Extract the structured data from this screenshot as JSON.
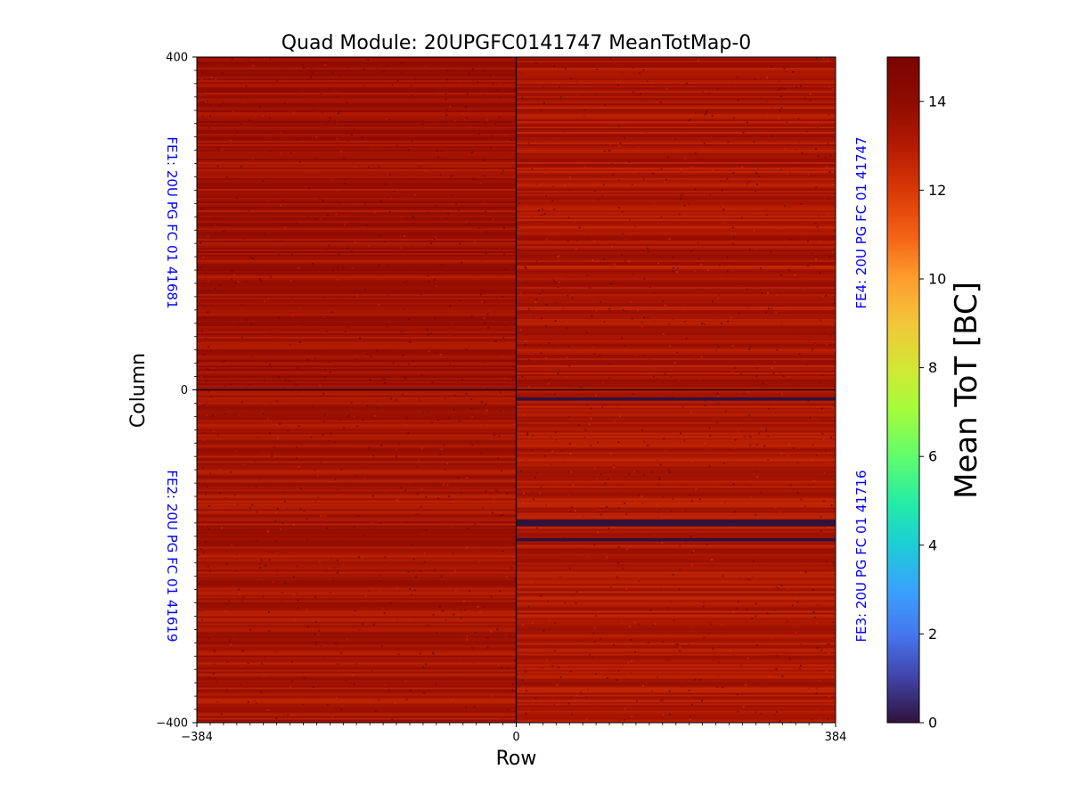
{
  "chart_data": {
    "type": "heatmap",
    "title": "Quad Module: 20UPGFC0141747 MeanTotMap-0",
    "xlabel": "Row",
    "ylabel": "Column",
    "xlim": [
      -384,
      384
    ],
    "ylim": [
      -400,
      400
    ],
    "x_ticks": [
      {
        "value": -384,
        "label": "−384"
      },
      {
        "value": 0,
        "label": "0"
      },
      {
        "value": 384,
        "label": "384"
      }
    ],
    "y_ticks": [
      {
        "value": 400,
        "label": "400"
      },
      {
        "value": 0,
        "label": "0"
      },
      {
        "value": -400,
        "label": "−400"
      }
    ],
    "colorbar": {
      "label": "Mean ToT [BC]",
      "range": [
        0,
        15
      ],
      "ticks": [
        {
          "value": 0,
          "label": "0"
        },
        {
          "value": 2,
          "label": "2"
        },
        {
          "value": 4,
          "label": "4"
        },
        {
          "value": 6,
          "label": "6"
        },
        {
          "value": 8,
          "label": "8"
        },
        {
          "value": 10,
          "label": "10"
        },
        {
          "value": 12,
          "label": "12"
        },
        {
          "value": 14,
          "label": "14"
        }
      ],
      "colormap": "turbo"
    },
    "typical_value": 13.5,
    "chips": [
      {
        "name": "FE1: 20U PG FC 01 41681",
        "x_range": [
          -384,
          0
        ],
        "y_range": [
          0,
          400
        ],
        "mean_tot": 13.6,
        "label_side": "left"
      },
      {
        "name": "FE4: 20U PG FC 01 41747",
        "x_range": [
          0,
          384
        ],
        "y_range": [
          0,
          400
        ],
        "mean_tot": 13.3,
        "label_side": "right"
      },
      {
        "name": "FE2: 20U PG FC 01 41619",
        "x_range": [
          -384,
          0
        ],
        "y_range": [
          -400,
          0
        ],
        "mean_tot": 13.4,
        "label_side": "left"
      },
      {
        "name": "FE3: 20U PG FC 01 41716",
        "x_range": [
          0,
          384
        ],
        "y_range": [
          -400,
          0
        ],
        "mean_tot": 13.2,
        "label_side": "right"
      }
    ],
    "dead_bands": [
      {
        "x_range": [
          0,
          384
        ],
        "y_range": [
          -13,
          -9
        ],
        "value": 0
      },
      {
        "x_range": [
          0,
          384
        ],
        "y_range": [
          -164,
          -156
        ],
        "value": 0
      },
      {
        "x_range": [
          0,
          384
        ],
        "y_range": [
          -182,
          -178
        ],
        "value": 0
      }
    ]
  },
  "colors": {
    "chip_label": "#0000ff",
    "axis": "#000000",
    "divider": "#000000"
  }
}
